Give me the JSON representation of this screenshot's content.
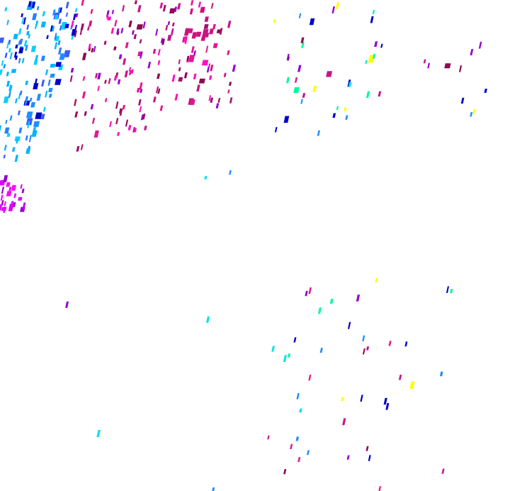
{
  "background": "#ffffff",
  "palette": {
    "blue_cluster": [
      "#1e90ff",
      "#00b4ff",
      "#2a7fff",
      "#0000cd",
      "#3b5bff",
      "#00d0ff"
    ],
    "magenta_cluster": [
      "#c71585",
      "#e0188f",
      "#8b0a50",
      "#a0106a",
      "#ff10c0",
      "#9400d3"
    ],
    "violet_cluster": [
      "#e000ff",
      "#c000ff",
      "#ff00ff",
      "#9400d3"
    ],
    "sparse": [
      "#c71585",
      "#8b0a50",
      "#9400d3",
      "#1e90ff",
      "#00e5ee",
      "#00fa9a",
      "#e0188f",
      "#0000cd",
      "#ffff00"
    ]
  }
}
